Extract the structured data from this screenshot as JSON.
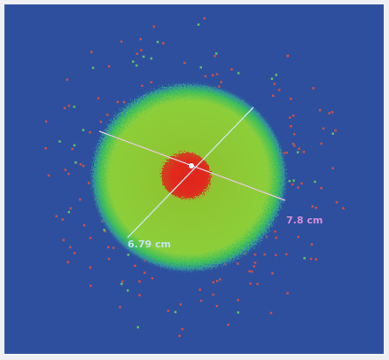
{
  "image": {
    "labels": [
      "6.79 cm",
      "7.8 cm"
    ]
  }
}
